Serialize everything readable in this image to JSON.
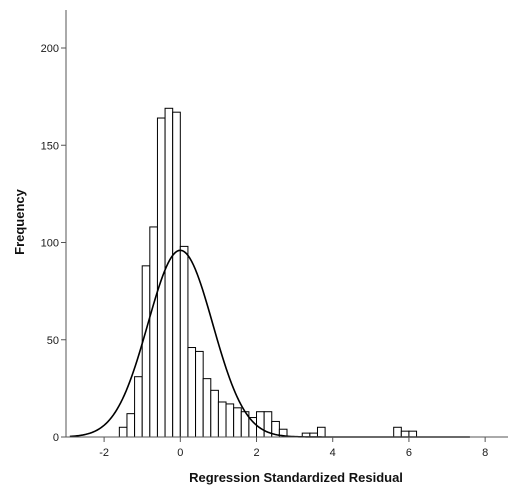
{
  "chart_data": {
    "type": "bar",
    "title": "",
    "xlabel": "Regression Standardized Residual",
    "ylabel": "Frequency",
    "xlim": [
      -3.0,
      8.6
    ],
    "ylim": [
      0,
      200
    ],
    "x_ticks": [
      -2,
      0,
      2,
      4,
      6,
      8
    ],
    "y_ticks": [
      0,
      50,
      100,
      150,
      200
    ],
    "bin_width": 0.2,
    "grid": false,
    "legend": "none",
    "bins": [
      {
        "x_start": -1.6,
        "x_end": -1.4,
        "count": 5
      },
      {
        "x_start": -1.4,
        "x_end": -1.2,
        "count": 12
      },
      {
        "x_start": -1.2,
        "x_end": -1.0,
        "count": 31
      },
      {
        "x_start": -1.0,
        "x_end": -0.8,
        "count": 88
      },
      {
        "x_start": -0.8,
        "x_end": -0.6,
        "count": 108
      },
      {
        "x_start": -0.6,
        "x_end": -0.4,
        "count": 164
      },
      {
        "x_start": -0.4,
        "x_end": -0.2,
        "count": 169
      },
      {
        "x_start": -0.2,
        "x_end": 0.0,
        "count": 167
      },
      {
        "x_start": 0.0,
        "x_end": 0.2,
        "count": 98
      },
      {
        "x_start": 0.2,
        "x_end": 0.4,
        "count": 46
      },
      {
        "x_start": 0.4,
        "x_end": 0.6,
        "count": 44
      },
      {
        "x_start": 0.6,
        "x_end": 0.8,
        "count": 30
      },
      {
        "x_start": 0.8,
        "x_end": 1.0,
        "count": 24
      },
      {
        "x_start": 1.0,
        "x_end": 1.2,
        "count": 18
      },
      {
        "x_start": 1.2,
        "x_end": 1.4,
        "count": 17
      },
      {
        "x_start": 1.4,
        "x_end": 1.6,
        "count": 15
      },
      {
        "x_start": 1.6,
        "x_end": 1.8,
        "count": 13
      },
      {
        "x_start": 1.8,
        "x_end": 2.0,
        "count": 10
      },
      {
        "x_start": 2.0,
        "x_end": 2.2,
        "count": 13
      },
      {
        "x_start": 2.2,
        "x_end": 2.4,
        "count": 13
      },
      {
        "x_start": 2.4,
        "x_end": 2.6,
        "count": 8
      },
      {
        "x_start": 2.6,
        "x_end": 2.8,
        "count": 4
      },
      {
        "x_start": 3.2,
        "x_end": 3.4,
        "count": 2
      },
      {
        "x_start": 3.4,
        "x_end": 3.6,
        "count": 2
      },
      {
        "x_start": 3.6,
        "x_end": 3.8,
        "count": 5
      },
      {
        "x_start": 5.6,
        "x_end": 5.8,
        "count": 5
      },
      {
        "x_start": 5.8,
        "x_end": 6.0,
        "count": 3
      },
      {
        "x_start": 6.0,
        "x_end": 6.2,
        "count": 3
      }
    ],
    "normal_curve": {
      "type": "line",
      "mean": 0.0,
      "peak": 96,
      "sd": 0.85
    },
    "colors": {
      "bar_fill": "#ffffff",
      "bar_stroke": "#000000",
      "curve": "#000000",
      "axis": "#555555",
      "text": "#111111"
    }
  }
}
